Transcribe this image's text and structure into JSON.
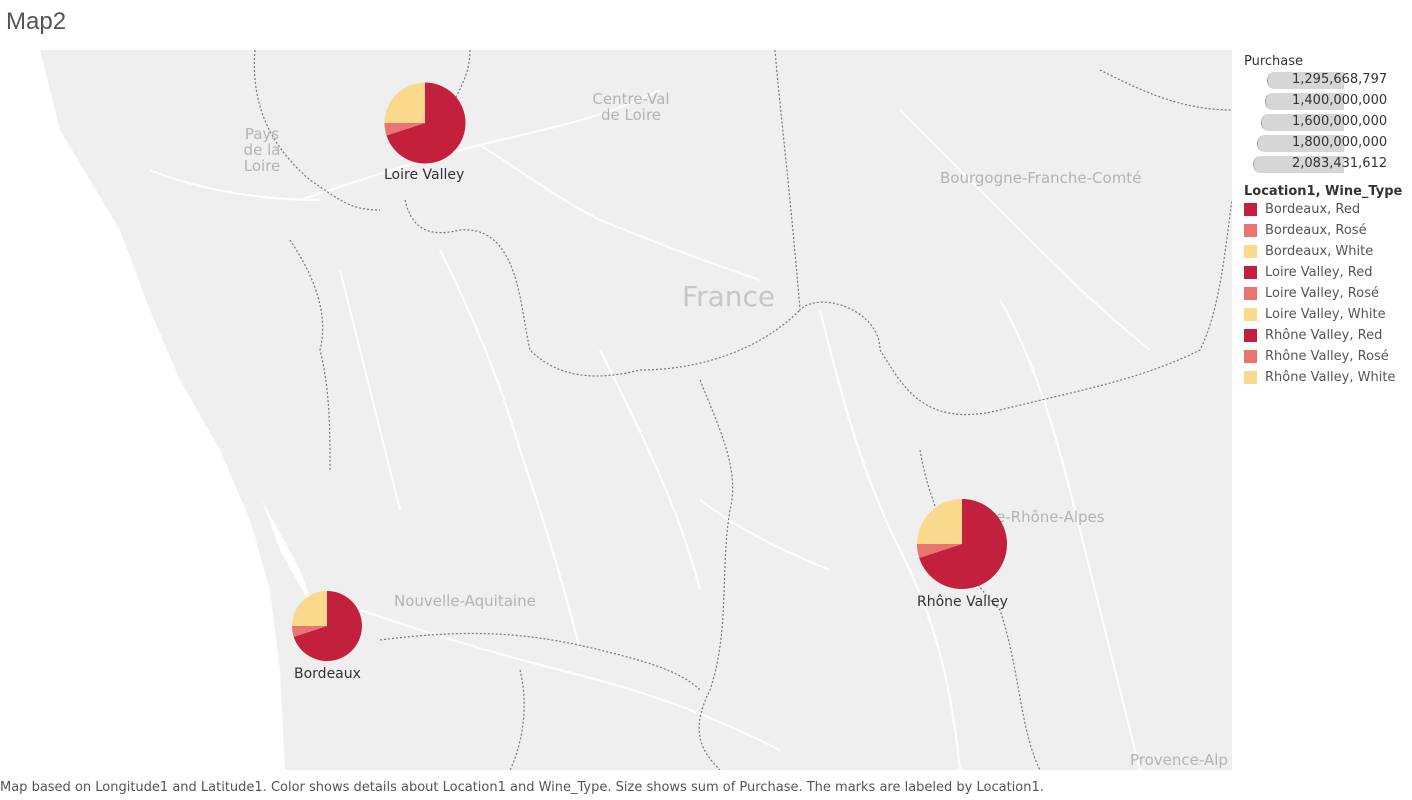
{
  "title": "Map2",
  "map": {
    "country_label": "France",
    "regions": [
      "Pays de la Loire",
      "Centre-Val de Loire",
      "Bourgogne-Franche-Comté",
      "Nouvelle-Aquitaine",
      "e-Rhône-Alpes",
      "Provence-Alp"
    ],
    "marks": [
      {
        "label": "Loire Valley",
        "purchase_share": 0.55,
        "slices": {
          "Red": 0.7,
          "Rosé": 0.05,
          "White": 0.25
        }
      },
      {
        "label": "Rhône Valley",
        "purchase_share": 1.0,
        "slices": {
          "Red": 0.7,
          "Rosé": 0.05,
          "White": 0.25
        }
      },
      {
        "label": "Bordeaux",
        "purchase_share": 0.0,
        "slices": {
          "Red": 0.7,
          "Rosé": 0.05,
          "White": 0.25
        }
      }
    ]
  },
  "legend_size": {
    "title": "Purchase",
    "values": [
      "1,295,668,797",
      "1,400,000,000",
      "1,600,000,000",
      "1,800,000,000",
      "2,083,431,612"
    ]
  },
  "legend_color": {
    "title": "Location1, Wine_Type",
    "items": [
      {
        "label": "Bordeaux, Red",
        "color": "#c2203d"
      },
      {
        "label": "Bordeaux, Rosé",
        "color": "#ea7570"
      },
      {
        "label": "Bordeaux, White",
        "color": "#f9d98c"
      },
      {
        "label": "Loire Valley, Red",
        "color": "#c2203d"
      },
      {
        "label": "Loire Valley, Rosé",
        "color": "#ea7570"
      },
      {
        "label": "Loire Valley, White",
        "color": "#f9d98c"
      },
      {
        "label": "Rhône Valley, Red",
        "color": "#c2203d"
      },
      {
        "label": "Rhône Valley, Rosé",
        "color": "#ea7570"
      },
      {
        "label": "Rhône Valley, White",
        "color": "#f9d98c"
      }
    ]
  },
  "caption": "Map based on Longitude1 and Latitude1.  Color shows details about Location1 and Wine_Type.  Size shows sum of Purchase.  The marks are labeled by Location1."
}
